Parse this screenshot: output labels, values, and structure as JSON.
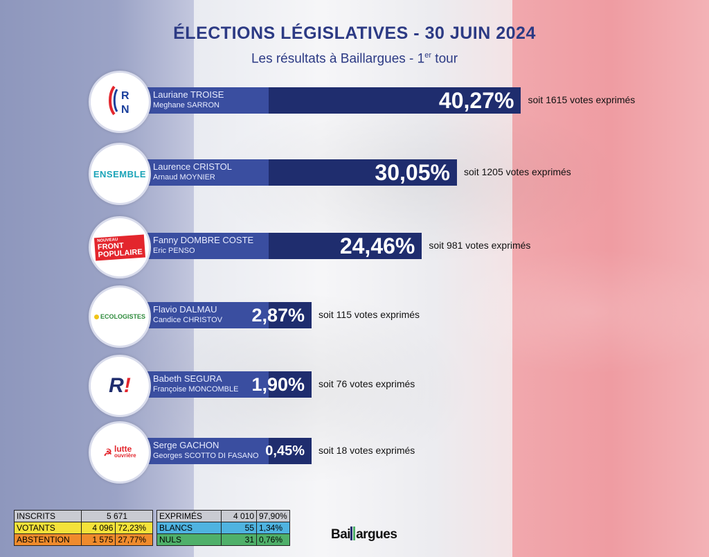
{
  "header": {
    "title": "ÉLECTIONS LÉGISLATIVES - 30 JUIN 2024",
    "subtitle_main": "Les résultats à Baillargues - 1",
    "subtitle_sup": "er",
    "subtitle_end": " tour"
  },
  "chart_data": {
    "type": "bar",
    "orientation": "horizontal",
    "categories": [
      "RN",
      "ENSEMBLE",
      "FRONT POPULAIRE",
      "ECOLOGISTES",
      "R!",
      "lutte ouvrière"
    ],
    "values": [
      40.27,
      30.05,
      24.46,
      2.87,
      1.9,
      0.45
    ],
    "value_labels": [
      "40,27%",
      "30,05%",
      "24,46%",
      "2,87%",
      "1,90%",
      "0,45%"
    ],
    "candidates": [
      {
        "logo": "RN",
        "name1": "Lauriane TROISE",
        "name2": "Meghane SARRON",
        "pct": "40,27%",
        "votes": "soit 1615 votes exprimés"
      },
      {
        "logo": "ENSEMBLE",
        "name1": "Laurence CRISTOL",
        "name2": "Arnaud MOYNIER",
        "pct": "30,05%",
        "votes": "soit 1205 votes exprimés"
      },
      {
        "logo": "FRONT POPULAIRE",
        "logo_top": "NOUVEAU",
        "logo_l1": "FRONT",
        "logo_l2": "POPULAIRE",
        "name1": "Fanny DOMBRE COSTE",
        "name2": "Eric PENSO",
        "pct": "24,46%",
        "votes": "soit 981 votes exprimés"
      },
      {
        "logo": "ECOLOGISTES",
        "name1": "Flavio DALMAU",
        "name2": "Candice CHRISTOV",
        "pct": "2,87%",
        "votes": "soit 115 votes exprimés"
      },
      {
        "logo": "R!",
        "name1": "Babeth SEGURA",
        "name2": "Françoise MONCOMBLE",
        "pct": "1,90%",
        "votes": "soit 76 votes exprimés"
      },
      {
        "logo": "lutte ouvrière",
        "logo_l1": "lutte",
        "logo_l2": "ouvrière",
        "name1": "Serge GACHON",
        "name2": "Georges SCOTTO DI FASANO",
        "pct": "0,45%",
        "votes": "soit 18 votes exprimés"
      }
    ]
  },
  "stats_left": [
    {
      "label": "INSCRITS",
      "value": "5 671",
      "pct": ""
    },
    {
      "label": "VOTANTS",
      "value": "4 096",
      "pct": "72,23%"
    },
    {
      "label": "ABSTENTION",
      "value": "1 575",
      "pct": "27,77%"
    }
  ],
  "stats_right": [
    {
      "label": "EXPRIMÉS",
      "value": "4 010",
      "pct": "97,90%"
    },
    {
      "label": "BLANCS",
      "value": "55",
      "pct": "1,34%"
    },
    {
      "label": "NULS",
      "value": "31",
      "pct": "0,76%"
    }
  ],
  "brand": {
    "part1": "Bai",
    "part2": "argues"
  },
  "colors": {
    "navy": "#1f2d6e",
    "names_blue": "#3a4ea0",
    "title_blue": "#2c3a84",
    "votants": "#f4e23a",
    "abstention": "#ef8b2c",
    "blancs": "#4fb3e0",
    "nuls": "#4fb06a"
  }
}
